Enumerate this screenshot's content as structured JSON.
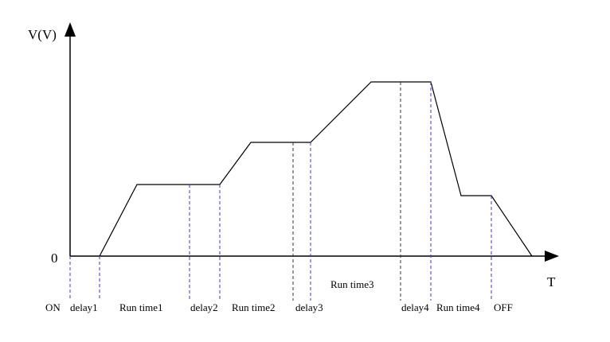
{
  "axis": {
    "y_label": "V(V)",
    "x_label": "T",
    "origin_label": "0"
  },
  "segments": [
    "ON",
    "delay1",
    "Run time1",
    "delay2",
    "Run time2",
    "delay3",
    "Run time3",
    "delay4",
    "Run time4",
    "OFF"
  ]
}
